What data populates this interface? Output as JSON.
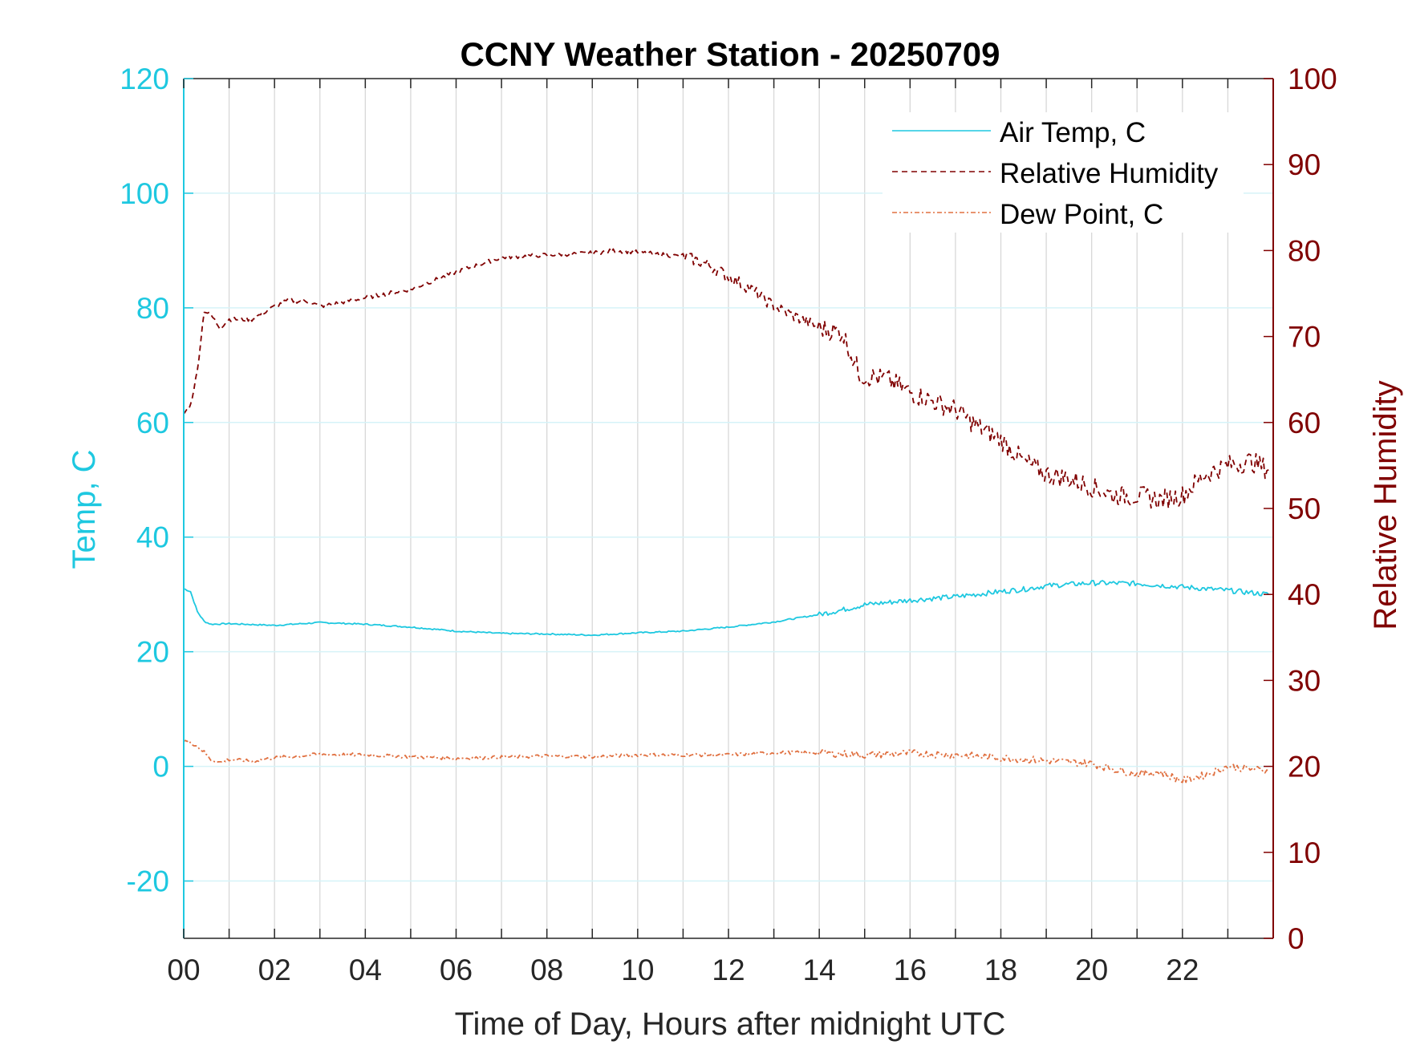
{
  "chart_data": {
    "type": "line",
    "title": "CCNY Weather Station - 20250709",
    "xlabel": "Time of Day, Hours after midnight UTC",
    "ylabel_left": "Temp, C",
    "ylabel_right": "Relative Humidity",
    "xlim": [
      0,
      24
    ],
    "ylim_left": [
      -30,
      120
    ],
    "ylim_right": [
      0,
      100
    ],
    "x_ticks": [
      0,
      2,
      4,
      6,
      8,
      10,
      12,
      14,
      16,
      18,
      20,
      22
    ],
    "x_tick_labels": [
      "00",
      "02",
      "04",
      "06",
      "08",
      "10",
      "12",
      "14",
      "16",
      "18",
      "20",
      "22"
    ],
    "y_left_ticks": [
      -20,
      0,
      20,
      40,
      60,
      80,
      100,
      120
    ],
    "y_left_tick_labels": [
      "-20",
      "0",
      "20",
      "40",
      "60",
      "80",
      "100",
      "120"
    ],
    "y_right_ticks": [
      0,
      10,
      20,
      30,
      40,
      50,
      60,
      70,
      80,
      90,
      100
    ],
    "y_right_tick_labels": [
      "0",
      "10",
      "20",
      "30",
      "40",
      "50",
      "60",
      "70",
      "80",
      "90",
      "100"
    ],
    "grid": true,
    "legend_position": "top-right",
    "colors": {
      "temp_axis": "#1ec8e0",
      "rh_axis": "#800000",
      "dew": "#e07040",
      "grid": "#d8d8d8",
      "grid_h": "#d6f3f8",
      "axis_box": "#262626"
    },
    "series": [
      {
        "name": "Air Temp, C",
        "axis": "left",
        "style": "solid",
        "color": "#1ec8e0",
        "x": [
          0,
          0.15,
          0.3,
          0.45,
          0.6,
          1,
          2,
          3,
          4,
          5,
          6,
          7,
          8,
          9,
          10,
          11,
          12,
          13,
          14,
          14.5,
          15,
          16,
          17,
          18,
          18.5,
          19,
          20,
          21,
          22,
          23,
          23.9
        ],
        "y": [
          31,
          30.5,
          27,
          25.3,
          24.8,
          24.9,
          24.6,
          25.1,
          24.8,
          24.3,
          23.6,
          23.2,
          23.1,
          22.9,
          23.3,
          23.6,
          24.3,
          25.2,
          26.5,
          27.3,
          28.2,
          29.0,
          29.6,
          30.5,
          30.9,
          31.5,
          32.0,
          31.9,
          31.3,
          30.7,
          30.0
        ]
      },
      {
        "name": "Relative Humidity",
        "axis": "right",
        "style": "dashed",
        "color": "#800000",
        "x": [
          0,
          0.15,
          0.3,
          0.45,
          0.6,
          0.8,
          1,
          1.5,
          2,
          2.3,
          2.8,
          3,
          4,
          5,
          6,
          7,
          8,
          9,
          9.5,
          10,
          11,
          11.5,
          12,
          12.5,
          13,
          14,
          14.5,
          14.9,
          15.5,
          16,
          16.5,
          17,
          17.5,
          18,
          18.5,
          19,
          19.5,
          20,
          20.5,
          21,
          21.5,
          22,
          22.5,
          23,
          23.5,
          23.9
        ],
        "y": [
          61,
          62,
          66,
          73,
          72.5,
          71,
          72,
          72,
          73.5,
          74.2,
          74,
          73.5,
          74.5,
          75.5,
          77.5,
          79.2,
          79.5,
          79.7,
          80.0,
          79.8,
          79.3,
          78.5,
          77.0,
          75.5,
          73.5,
          71.0,
          70.5,
          65.5,
          65.0,
          63.5,
          62.5,
          61.5,
          59.5,
          58.0,
          55.5,
          54.0,
          53.5,
          52.5,
          51.5,
          51.5,
          51.0,
          51.5,
          54.0,
          55.0,
          55.5,
          54.5
        ]
      },
      {
        "name": "Dew Point, C",
        "axis": "left",
        "style": "dashdot",
        "color": "#e07040",
        "x": [
          0,
          0.15,
          0.3,
          0.45,
          0.6,
          0.8,
          1,
          1.5,
          2,
          3,
          4,
          5,
          6,
          7,
          8,
          9,
          10,
          11,
          12,
          13,
          14,
          15,
          16,
          17,
          18,
          19,
          20,
          20.5,
          21,
          21.5,
          22,
          22.5,
          23,
          23.9
        ],
        "y": [
          4.5,
          4.2,
          3.5,
          2.5,
          1.2,
          0.7,
          1.2,
          0.9,
          1.5,
          2.1,
          2.0,
          1.7,
          1.4,
          1.6,
          1.8,
          1.7,
          2.0,
          2.0,
          2.0,
          2.4,
          2.4,
          2.0,
          2.3,
          2.0,
          1.5,
          1.0,
          0.5,
          -0.5,
          -1.3,
          -1.0,
          -2.5,
          -1.5,
          0.0,
          -0.8
        ]
      }
    ]
  }
}
